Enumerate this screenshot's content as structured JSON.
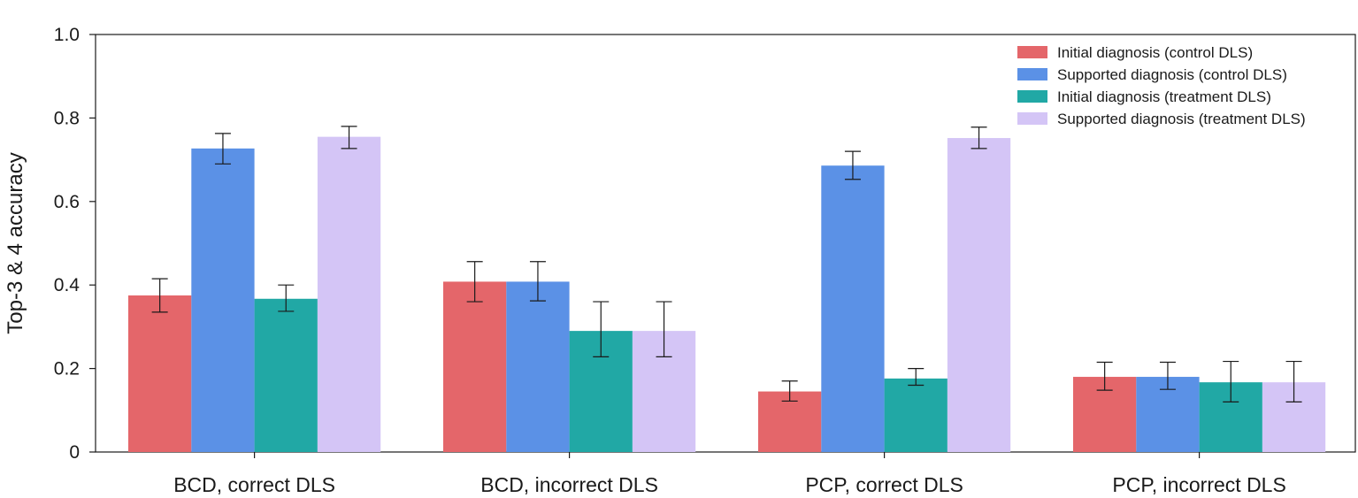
{
  "chart_data": {
    "type": "bar",
    "title": "",
    "xlabel": "",
    "ylabel": "Top-3 & 4 accuracy",
    "ylim": [
      0,
      1.0
    ],
    "yticks": [
      0,
      0.2,
      0.4,
      0.6,
      0.8,
      1.0
    ],
    "ytick_labels": [
      "0",
      "0.2",
      "0.4",
      "0.6",
      "0.8",
      "1.0"
    ],
    "grid": false,
    "legend_position": "top-right",
    "categories": [
      "BCD, correct DLS",
      "BCD, incorrect DLS",
      "PCP, correct DLS",
      "PCP, incorrect DLS"
    ],
    "series": [
      {
        "name": "Initial diagnosis (control DLS)",
        "color": "#e4666a",
        "values": [
          0.375,
          0.408,
          0.145,
          0.18
        ],
        "err_low": [
          0.335,
          0.36,
          0.122,
          0.148
        ],
        "err_high": [
          0.415,
          0.456,
          0.17,
          0.215
        ]
      },
      {
        "name": "Supported diagnosis (control DLS)",
        "color": "#5b91e6",
        "values": [
          0.727,
          0.408,
          0.686,
          0.18
        ],
        "err_low": [
          0.69,
          0.362,
          0.653,
          0.15
        ],
        "err_high": [
          0.763,
          0.456,
          0.72,
          0.215
        ]
      },
      {
        "name": "Initial diagnosis (treatment DLS)",
        "color": "#21a8a5",
        "values": [
          0.367,
          0.29,
          0.176,
          0.167
        ],
        "err_low": [
          0.337,
          0.228,
          0.16,
          0.12
        ],
        "err_high": [
          0.4,
          0.36,
          0.2,
          0.217
        ]
      },
      {
        "name": "Supported diagnosis (treatment DLS)",
        "color": "#d4c5f6",
        "values": [
          0.755,
          0.29,
          0.752,
          0.167
        ],
        "err_low": [
          0.727,
          0.228,
          0.727,
          0.12
        ],
        "err_high": [
          0.78,
          0.36,
          0.778,
          0.217
        ]
      }
    ]
  }
}
